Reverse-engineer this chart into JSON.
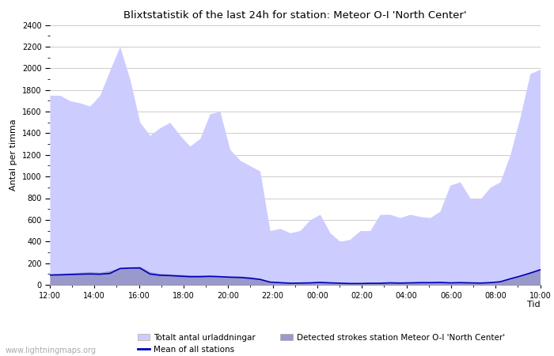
{
  "title": "Blixtstatistik of the last 24h for station: Meteor O-I 'North Center'",
  "xlabel": "Tid",
  "ylabel": "Antal per timma",
  "ylim": [
    0,
    2400
  ],
  "yticks": [
    0,
    200,
    400,
    600,
    800,
    1000,
    1200,
    1400,
    1600,
    1800,
    2000,
    2200,
    2400
  ],
  "xtick_labels": [
    "12:00",
    "14:00",
    "16:00",
    "18:00",
    "20:00",
    "22:00",
    "00:00",
    "02:00",
    "04:00",
    "06:00",
    "08:00",
    "10:00"
  ],
  "watermark": "www.lightningmaps.org",
  "legend_row1": [
    {
      "label": "Totalt antal urladdningar",
      "color": "#ccccff",
      "type": "fill"
    },
    {
      "label": "Mean of all stations",
      "color": "#0000bb",
      "type": "line"
    }
  ],
  "legend_row2": [
    {
      "label": "Detected strokes station Meteor O-I 'North Center'",
      "color": "#9999cc",
      "type": "fill"
    }
  ],
  "total_fill_color": "#ccccff",
  "detected_fill_color": "#9999cc",
  "mean_line_color": "#0000bb",
  "background_color": "#ffffff",
  "grid_color": "#cccccc",
  "total_y": [
    1750,
    1750,
    1700,
    1680,
    1650,
    1750,
    1980,
    2200,
    1900,
    1500,
    1380,
    1450,
    1500,
    1380,
    1280,
    1350,
    1580,
    1600,
    1250,
    1150,
    1100,
    1050,
    500,
    520,
    480,
    500,
    600,
    650,
    480,
    400,
    420,
    500,
    500,
    650,
    650,
    620,
    650,
    630,
    620,
    680,
    920,
    950,
    800,
    790,
    900,
    950,
    1200,
    1550,
    1950,
    1990
  ],
  "detected_y": [
    100,
    105,
    110,
    115,
    120,
    115,
    130,
    160,
    165,
    170,
    120,
    105,
    100,
    95,
    90,
    90,
    90,
    85,
    80,
    80,
    75,
    60,
    30,
    25,
    20,
    22,
    25,
    30,
    25,
    20,
    18,
    18,
    20,
    20,
    25,
    22,
    25,
    28,
    28,
    30,
    25,
    28,
    25,
    22,
    28,
    35,
    60,
    85,
    120,
    150
  ],
  "mean_y": [
    90,
    92,
    95,
    98,
    100,
    98,
    105,
    150,
    155,
    155,
    100,
    88,
    85,
    80,
    75,
    75,
    78,
    75,
    70,
    68,
    60,
    50,
    25,
    20,
    15,
    16,
    18,
    22,
    18,
    15,
    12,
    12,
    14,
    14,
    18,
    16,
    18,
    20,
    20,
    22,
    18,
    20,
    18,
    16,
    20,
    28,
    55,
    80,
    108,
    138
  ]
}
